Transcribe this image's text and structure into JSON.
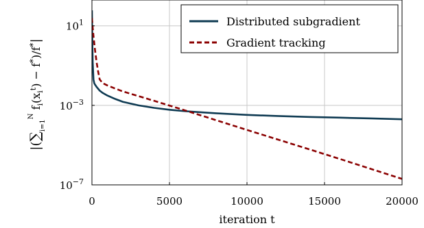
{
  "chart_data": {
    "type": "line",
    "xlabel": "iteration t",
    "ylabel": "|(∑_{i=1}^{N} f_i(x_i^t) − f*)/f*|",
    "xlim": [
      0,
      20000
    ],
    "ylim_log10": [
      -7,
      2.3
    ],
    "y_scale": "log",
    "grid": true,
    "legend_position": "top-right",
    "x_ticks": [
      0,
      5000,
      10000,
      15000,
      20000
    ],
    "x_tick_labels": [
      "0",
      "5000",
      "10000",
      "15000",
      "20000"
    ],
    "y_ticks_log10": [
      -7,
      -3,
      1
    ],
    "y_tick_labels": [
      {
        "base": "10",
        "exp": "−7"
      },
      {
        "base": "10",
        "exp": "−3"
      },
      {
        "base": "10",
        "exp": "1"
      }
    ],
    "series": [
      {
        "name": "Distributed subgradient",
        "color": "#0e3a52",
        "dash": "solid",
        "x": [
          0,
          20,
          50,
          100,
          150,
          200,
          300,
          500,
          700,
          1000,
          1500,
          2000,
          3000,
          4000,
          5000,
          6000,
          7000,
          8000,
          10000,
          12000,
          14000,
          16000,
          18000,
          20000
        ],
        "y": [
          60,
          3,
          0.15,
          0.02,
          0.013,
          0.011,
          0.0085,
          0.0055,
          0.0042,
          0.0031,
          0.0021,
          0.0015,
          0.001,
          0.00075,
          0.0006,
          0.00051,
          0.00045,
          0.0004,
          0.00033,
          0.00029,
          0.00026,
          0.00024,
          0.00022,
          0.0002
        ]
      },
      {
        "name": "Gradient tracking",
        "color": "#8b0000",
        "dash": "dashed",
        "x": [
          0,
          50,
          100,
          200,
          300,
          400,
          500,
          700,
          1000,
          1500,
          2000,
          4000,
          6000,
          8000,
          10000,
          12000,
          14000,
          16000,
          18000,
          20000
        ],
        "y": [
          25,
          8,
          3,
          0.6,
          0.15,
          0.05,
          0.02,
          0.013,
          0.01,
          0.007,
          0.005,
          0.0017,
          0.00056,
          0.00018,
          5.8e-05,
          1.9e-05,
          6.2e-06,
          2e-06,
          6.3e-07,
          2e-07
        ]
      }
    ]
  }
}
